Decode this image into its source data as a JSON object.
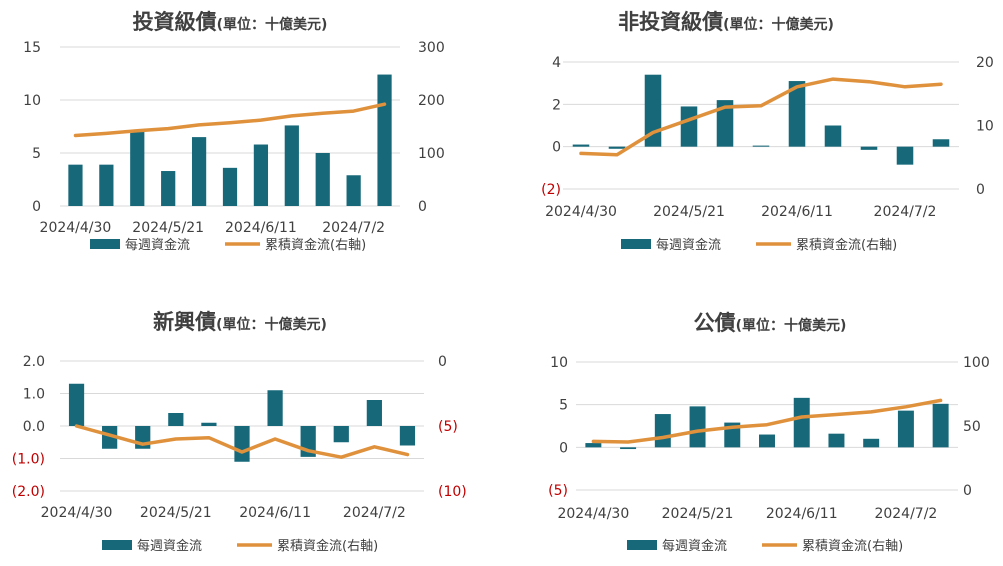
{
  "colors": {
    "bar": "#17697a",
    "line": "#e0913c",
    "grid": "#d9d9d9",
    "negative_tick": "#c00000"
  },
  "legend": {
    "bar_label": "每週資金流",
    "line_label": "累積資金流(右軸)"
  },
  "chart_data": [
    {
      "type": "bar+line",
      "title": "投資級債",
      "unit": "(單位：十億美元)",
      "x_ticks": [
        "2024/4/30",
        "2024/5/21",
        "2024/6/11",
        "2024/7/2"
      ],
      "x_tick_positions": [
        0,
        3,
        6,
        9
      ],
      "left_axis": {
        "ticks": [
          "0",
          "5",
          "10",
          "15"
        ],
        "values": [
          0,
          5,
          10,
          15
        ],
        "range": [
          0,
          15
        ]
      },
      "right_axis": {
        "ticks": [
          "0",
          "100",
          "200",
          "300"
        ],
        "values": [
          0,
          100,
          200,
          300
        ],
        "range": [
          0,
          300
        ]
      },
      "series": [
        {
          "name": "每週資金流",
          "type": "bar",
          "axis": "left",
          "values": [
            3.9,
            3.9,
            7.0,
            3.3,
            6.5,
            3.6,
            5.8,
            7.6,
            5.0,
            2.9,
            12.4
          ]
        },
        {
          "name": "累積資金流(右軸)",
          "type": "line",
          "axis": "right",
          "values": [
            133,
            137,
            142,
            146,
            153,
            157,
            162,
            170,
            175,
            179,
            192
          ]
        }
      ]
    },
    {
      "type": "bar+line",
      "title": "非投資級債",
      "unit": "(單位：十億美元)",
      "x_ticks": [
        "2024/4/30",
        "2024/5/21",
        "2024/6/11",
        "2024/7/2"
      ],
      "x_tick_positions": [
        0,
        3,
        6,
        9
      ],
      "left_axis": {
        "ticks": [
          "(2)",
          "0",
          "2",
          "4"
        ],
        "values": [
          -2,
          0,
          2,
          4
        ],
        "range": [
          -2,
          4
        ]
      },
      "right_axis": {
        "ticks": [
          "0",
          "10",
          "20"
        ],
        "values": [
          0,
          10,
          20
        ],
        "range": [
          0,
          20
        ]
      },
      "series": [
        {
          "name": "每週資金流",
          "type": "bar",
          "axis": "left",
          "values": [
            0.1,
            -0.1,
            3.4,
            1.9,
            2.2,
            0.05,
            3.1,
            1.0,
            -0.15,
            -0.85,
            0.35
          ]
        },
        {
          "name": "累積資金流(右軸)",
          "type": "line",
          "axis": "right",
          "values": [
            5.6,
            5.4,
            8.9,
            10.9,
            12.9,
            13.1,
            16.1,
            17.3,
            16.9,
            16.1,
            16.5
          ]
        }
      ]
    },
    {
      "type": "bar+line",
      "title": "新興債",
      "unit": "(單位：十億美元)",
      "x_ticks": [
        "2024/4/30",
        "2024/5/21",
        "2024/6/11",
        "2024/7/2"
      ],
      "x_tick_positions": [
        0,
        3,
        6,
        9
      ],
      "left_axis": {
        "ticks": [
          "(2.0)",
          "(1.0)",
          "0.0",
          "1.0",
          "2.0"
        ],
        "values": [
          -2,
          -1,
          0,
          1,
          2
        ],
        "range": [
          -2,
          2
        ]
      },
      "right_axis": {
        "ticks": [
          "(10)",
          "(5)",
          "0"
        ],
        "values": [
          -10,
          -5,
          0
        ],
        "range": [
          -10,
          0
        ]
      },
      "series": [
        {
          "name": "每週資金流",
          "type": "bar",
          "axis": "left",
          "values": [
            1.3,
            -0.7,
            -0.7,
            0.4,
            0.1,
            -1.1,
            1.1,
            -0.95,
            -0.5,
            0.8,
            -0.6
          ]
        },
        {
          "name": "累積資金流(右軸)",
          "type": "line",
          "axis": "right",
          "values": [
            -5.0,
            -5.7,
            -6.4,
            -6.0,
            -5.9,
            -7.0,
            -6.0,
            -6.9,
            -7.4,
            -6.6,
            -7.2
          ]
        }
      ]
    },
    {
      "type": "bar+line",
      "title": "公債",
      "unit": "(單位：十億美元)",
      "x_ticks": [
        "2024/4/30",
        "2024/5/21",
        "2024/6/11",
        "2024/7/2"
      ],
      "x_tick_positions": [
        0,
        3,
        6,
        9
      ],
      "left_axis": {
        "ticks": [
          "(5)",
          "0",
          "5",
          "10"
        ],
        "values": [
          -5,
          0,
          5,
          10
        ],
        "range": [
          -5,
          10
        ]
      },
      "right_axis": {
        "ticks": [
          "0",
          "50",
          "100"
        ],
        "values": [
          0,
          50,
          100
        ],
        "range": [
          0,
          100
        ]
      },
      "series": [
        {
          "name": "每週資金流",
          "type": "bar",
          "axis": "left",
          "values": [
            0.5,
            -0.2,
            3.9,
            4.8,
            2.9,
            1.5,
            5.8,
            1.6,
            1.0,
            4.3,
            5.1
          ]
        },
        {
          "name": "累積資金流(右軸)",
          "type": "line",
          "axis": "right",
          "values": [
            38,
            37.5,
            41,
            46,
            49,
            51,
            57,
            59,
            61,
            65,
            70
          ]
        }
      ]
    }
  ]
}
